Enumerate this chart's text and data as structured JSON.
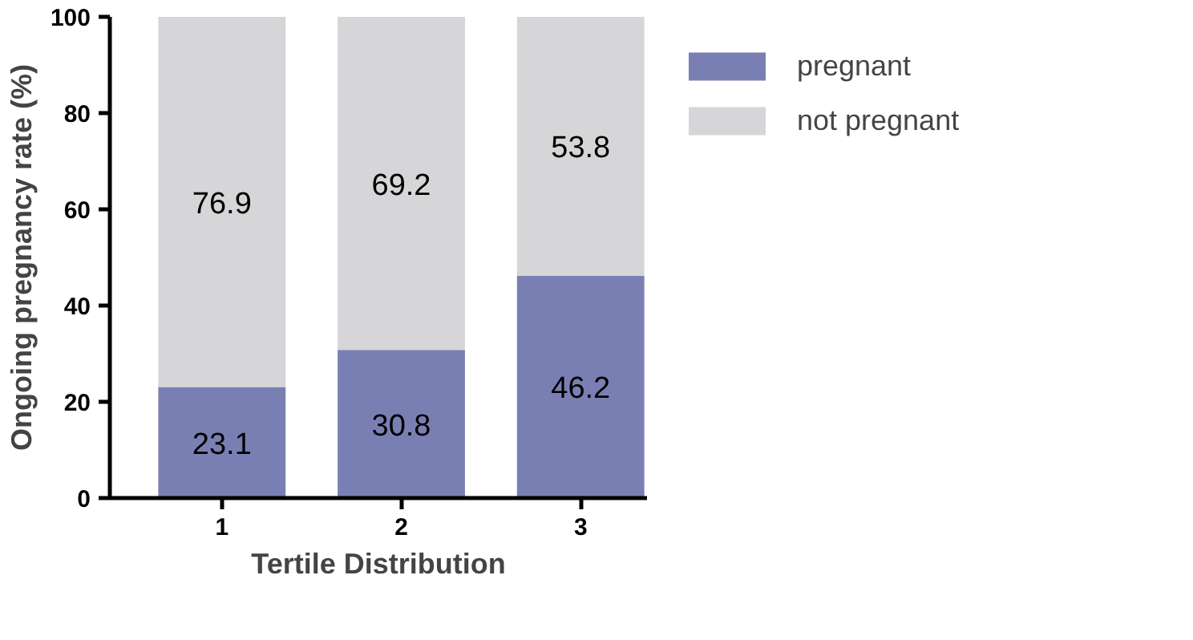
{
  "chart_data": {
    "type": "bar",
    "stacked": true,
    "xlabel": "Tertile Distribution",
    "ylabel": "Ongoing pregnancy rate (%)",
    "categories": [
      "1",
      "2",
      "3"
    ],
    "series": [
      {
        "name": "pregnant",
        "color": "#7a7fb3",
        "values": [
          23.1,
          30.8,
          46.2
        ]
      },
      {
        "name": "not pregnant",
        "color": "#d6d6d8",
        "values": [
          76.9,
          69.2,
          53.8
        ]
      }
    ],
    "ylim": [
      0,
      100
    ],
    "yticks": [
      0,
      20,
      40,
      60,
      80,
      100
    ],
    "data_labels": true,
    "legend": "top right",
    "grid": false
  }
}
